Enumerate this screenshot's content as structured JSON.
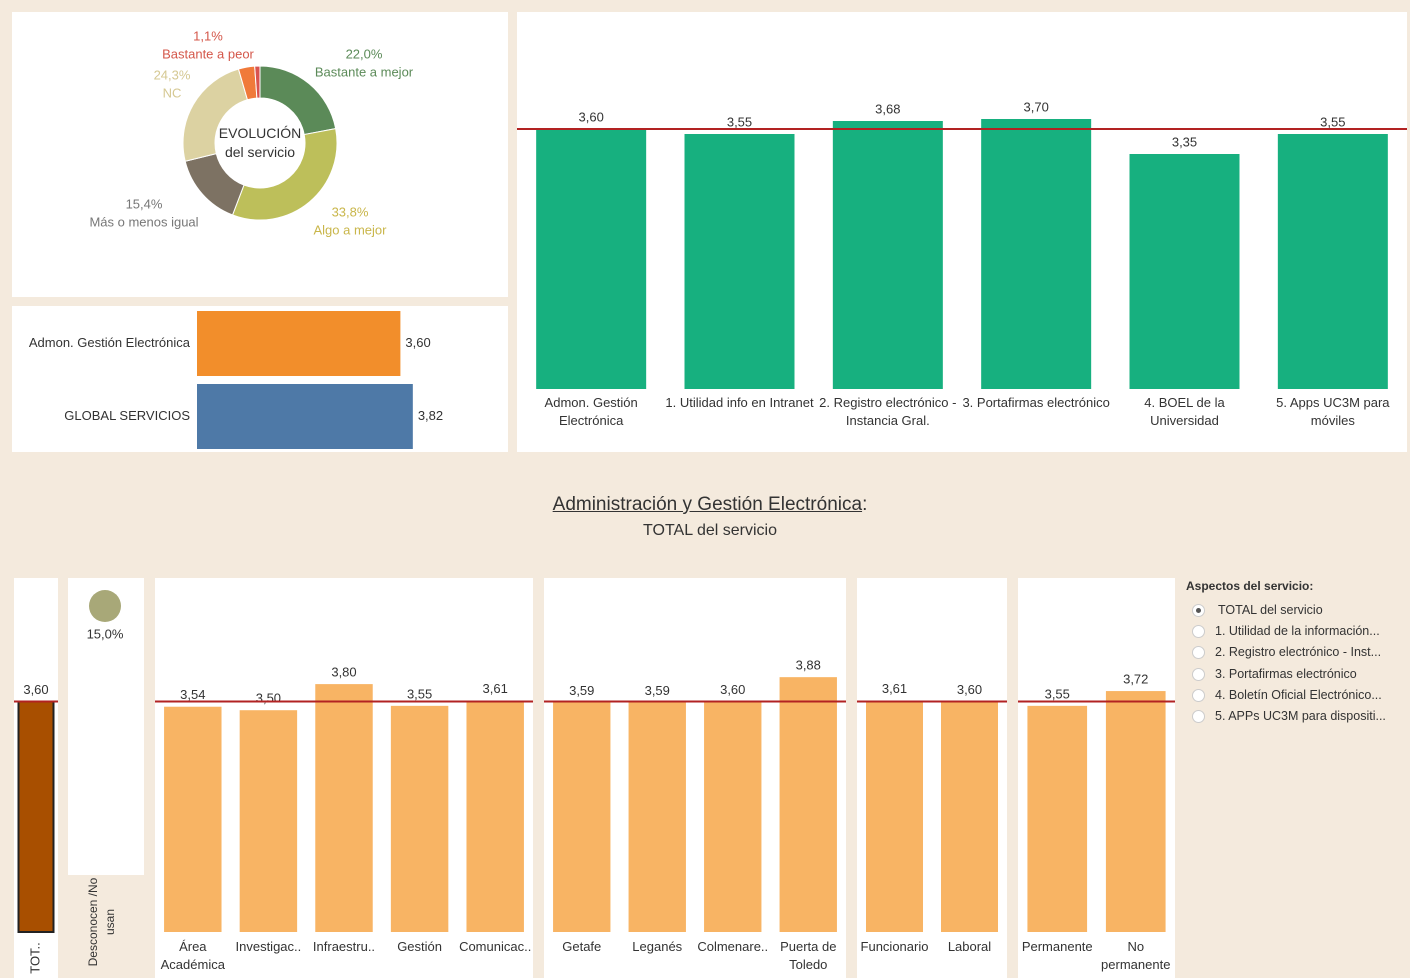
{
  "chart_data": [
    {
      "type": "pie",
      "title": "EVOLUCIÓN del servicio",
      "categories": [
        "Bastante a mejor",
        "Algo a mejor",
        "Más o menos igual",
        "NC",
        null,
        "Bastante a peor"
      ],
      "values": [
        22.0,
        33.8,
        15.4,
        24.3,
        3.4,
        1.1
      ],
      "value_labels": [
        "22,0%",
        "33,8%",
        "15,4%",
        "24,3%",
        null,
        "1,1%"
      ],
      "colors": [
        "#5b8a58",
        "#bdbf5a",
        "#7d7263",
        "#dcd2a2",
        "#f07a3a",
        "#d9534f"
      ],
      "label_colors": [
        "#5b8a58",
        "#c9b64a",
        "#777777",
        "#d5c892",
        null,
        "#d4574a"
      ]
    },
    {
      "type": "hbar",
      "categories": [
        "Admon. Gestión Electrónica",
        "GLOBAL SERVICIOS"
      ],
      "values": [
        3.6,
        3.82
      ],
      "value_labels": [
        "3,60",
        "3,82"
      ],
      "colors": [
        "#f28e2b",
        "#4e79a7"
      ],
      "xlim": [
        0,
        4
      ]
    },
    {
      "type": "bar",
      "categories": [
        "Admon. Gestión Electrónica",
        "1. Utilidad info en Intranet",
        "2. Registro electrónico - Instancia Gral.",
        "3. Portafirmas electrónico",
        "4. BOEL de la Universidad",
        "5. Apps UC3M para móviles"
      ],
      "values": [
        3.6,
        3.55,
        3.68,
        3.7,
        3.35,
        3.55
      ],
      "value_labels": [
        "3,60",
        "3,55",
        "3,68",
        "3,70",
        "3,35",
        "3,55"
      ],
      "color": "#17b07f",
      "ylim": [
        1,
        4.77
      ],
      "reference_line": 3.6
    },
    {
      "type": "bar",
      "categories": [
        "TOT.."
      ],
      "values": [
        3.6
      ],
      "value_labels": [
        "3,60"
      ],
      "color": "#a84f00",
      "ylim": [
        0.95,
        5.02
      ],
      "reference_line": 3.6
    },
    {
      "type": "dot",
      "categories": [
        "Desconocen /No usan"
      ],
      "values": [
        15.0
      ],
      "value_labels": [
        "15,0%"
      ],
      "color": "#a8a878"
    },
    {
      "type": "bar",
      "categories": [
        "Área Académica",
        "Investigac..",
        "Infraestru..",
        "Gestión",
        "Comunicac.."
      ],
      "values": [
        3.54,
        3.5,
        3.8,
        3.55,
        3.61
      ],
      "value_labels": [
        "3,54",
        "3,50",
        "3,80",
        "3,55",
        "3,61"
      ],
      "color": "#f8b464",
      "ylim": [
        0.95,
        5.02
      ],
      "reference_line": 3.6
    },
    {
      "type": "bar",
      "categories": [
        "Getafe",
        "Leganés",
        "Colmenare..",
        "Puerta de Toledo"
      ],
      "values": [
        3.59,
        3.59,
        3.6,
        3.88
      ],
      "value_labels": [
        "3,59",
        "3,59",
        "3,60",
        "3,88"
      ],
      "color": "#f8b464",
      "ylim": [
        0.95,
        5.02
      ],
      "reference_line": 3.6
    },
    {
      "type": "bar",
      "categories": [
        "Funcionario",
        "Laboral"
      ],
      "values": [
        3.61,
        3.6
      ],
      "value_labels": [
        "3,61",
        "3,60"
      ],
      "color": "#f8b464",
      "ylim": [
        0.95,
        5.02
      ],
      "reference_line": 3.6
    },
    {
      "type": "bar",
      "categories": [
        "Permanente",
        "No permanente"
      ],
      "values": [
        3.55,
        3.72
      ],
      "value_labels": [
        "3,55",
        "3,72"
      ],
      "color": "#f8b464",
      "ylim": [
        0.95,
        5.02
      ],
      "reference_line": 3.6
    }
  ],
  "heading": {
    "title": "Administración y Gestión Electrónica",
    "separator": ":",
    "subtitle": "TOTAL del servicio"
  },
  "filter": {
    "title": "Aspectos del servicio:",
    "selected": 0,
    "options": [
      "TOTAL del servicio",
      "1. Utilidad de la información...",
      "2. Registro electrónico - Inst...",
      "3. Portafirmas electrónico",
      "4. Boletín Oficial Electrónico...",
      "5. APPs UC3M para dispositi..."
    ]
  }
}
